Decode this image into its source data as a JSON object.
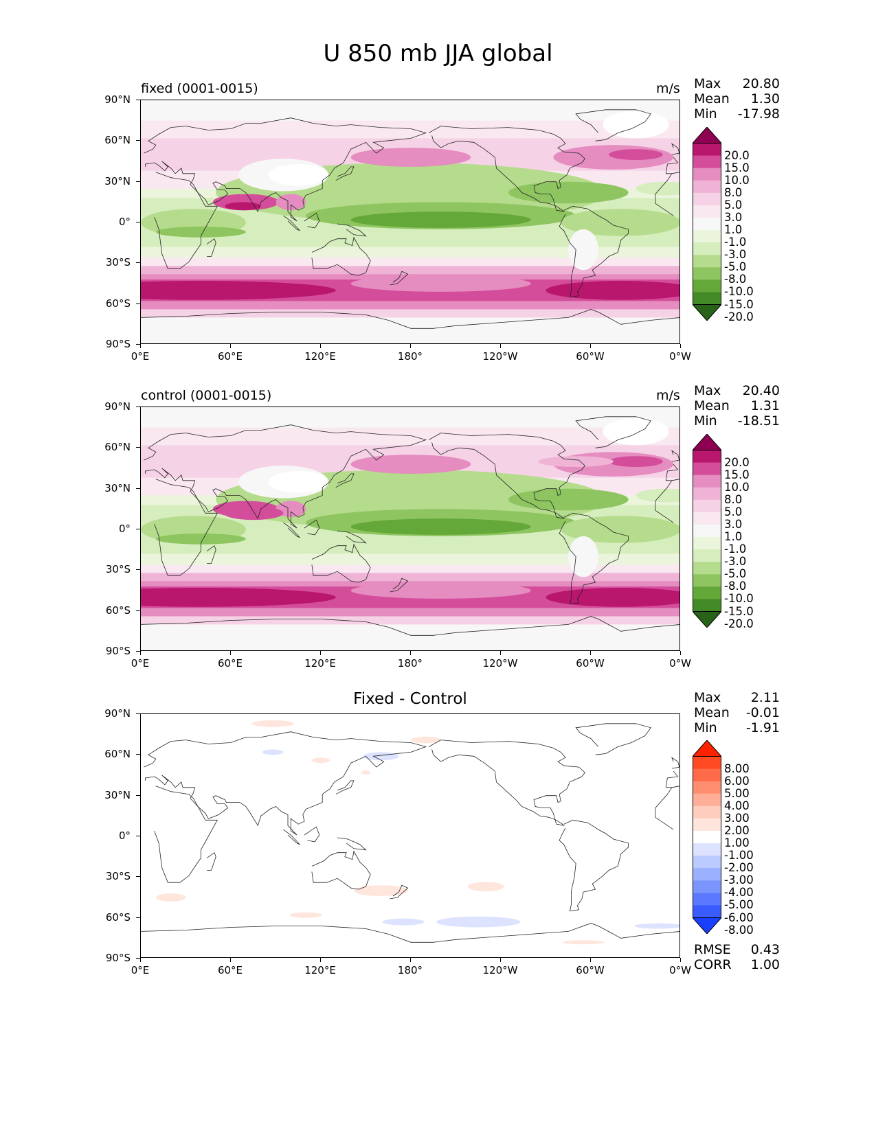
{
  "title": "U 850 mb JJA global",
  "lat_ticks": [
    "90°N",
    "60°N",
    "30°N",
    "0°",
    "30°S",
    "60°S",
    "90°S"
  ],
  "lon_ticks": [
    "0°E",
    "60°E",
    "120°E",
    "180°",
    "120°W",
    "60°W",
    "0°W"
  ],
  "panels": [
    {
      "label": "fixed (0001-0015)",
      "units": "m/s",
      "stats": {
        "max_label": "Max",
        "max": "20.80",
        "mean_label": "Mean",
        "mean": "1.30",
        "min_label": "Min",
        "min": "-17.98"
      }
    },
    {
      "label": "control (0001-0015)",
      "units": "m/s",
      "stats": {
        "max_label": "Max",
        "max": "20.40",
        "mean_label": "Mean",
        "mean": "1.31",
        "min_label": "Min",
        "min": "-18.51"
      }
    },
    {
      "label": "Fixed - Control",
      "units": "",
      "stats": {
        "max_label": "Max",
        "max": "2.11",
        "mean_label": "Mean",
        "mean": "-0.01",
        "min_label": "Min",
        "min": "-1.91"
      },
      "extra": {
        "rmse_label": "RMSE",
        "rmse": "0.43",
        "corr_label": "CORR",
        "corr": "1.00"
      }
    }
  ],
  "colorbars": {
    "field": {
      "labels": [
        "20.0",
        "15.0",
        "10.0",
        "8.0",
        "5.0",
        "3.0",
        "1.0",
        "-1.0",
        "-3.0",
        "-5.0",
        "-8.0",
        "-10.0",
        "-15.0",
        "-20.0"
      ],
      "colors": [
        "#8e0152",
        "#b9166e",
        "#d44d9a",
        "#e58cc0",
        "#efb3d6",
        "#f5d2e6",
        "#fae8f1",
        "#f7f7f7",
        "#eaf5dc",
        "#d6edbd",
        "#b5dc8c",
        "#8ec560",
        "#65a83a",
        "#428a26",
        "#276419"
      ]
    },
    "diff": {
      "labels": [
        "8.00",
        "6.00",
        "5.00",
        "4.00",
        "3.00",
        "2.00",
        "1.00",
        "-1.00",
        "-2.00",
        "-3.00",
        "-4.00",
        "-5.00",
        "-6.00",
        "-8.00"
      ],
      "colors": [
        "#ff2200",
        "#ff4a24",
        "#ff6a48",
        "#ff8d70",
        "#ffae97",
        "#ffcdbd",
        "#ffe6dd",
        "#ffffff",
        "#dde3ff",
        "#bccbff",
        "#9bb0ff",
        "#7b95ff",
        "#5a79ff",
        "#3a5cff",
        "#1a40ff"
      ]
    }
  }
}
